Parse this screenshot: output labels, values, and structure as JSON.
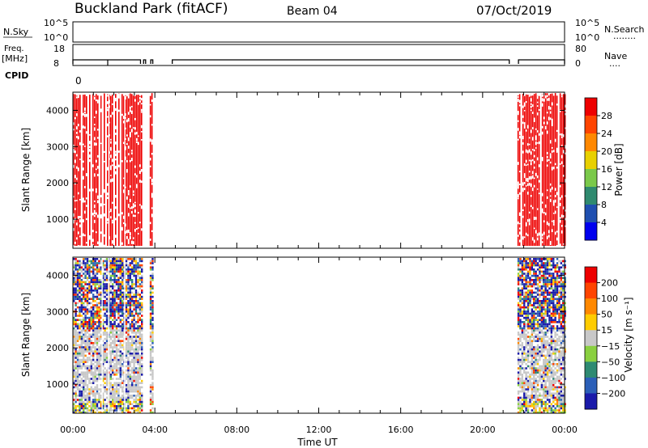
{
  "header": {
    "station": "Buckland Park (fitACF)",
    "beam": "Beam 04",
    "date": "07/Oct/2019"
  },
  "labels": {
    "nsky": "N.Sky",
    "freq_line1": "Freq.",
    "freq_line2": "[MHz]",
    "cpid": "CPID",
    "nsearch": "N.Search",
    "nave": "Nave",
    "dots_nsearch": "........",
    "dots_nave": "....",
    "cpid_value": "0"
  },
  "top_panels": {
    "noise_ticks": [
      "10^5",
      "10^0"
    ],
    "freq_ticks": [
      "18",
      "8"
    ],
    "nave_ticks": [
      "80",
      "0"
    ]
  },
  "chart_data": [
    {
      "type": "heatmap",
      "panel": "power",
      "ylabel": "Slant Range [km]",
      "xlabel": "",
      "x_ticks": [
        "00:00",
        "04:00",
        "08:00",
        "12:00",
        "16:00",
        "20:00",
        "00:00"
      ],
      "xlim_hours": [
        0,
        24
      ],
      "y_ticks": [
        1000,
        2000,
        3000,
        4000
      ],
      "ylim": [
        200,
        4500
      ],
      "colorbar": {
        "label": "Power [dB]",
        "ticks": [
          "4",
          "8",
          "12",
          "16",
          "20",
          "24",
          "28"
        ],
        "colors": [
          "#0000ee",
          "#1f4fb0",
          "#2f8a6f",
          "#7ac94a",
          "#e8d000",
          "#ff8800",
          "#ff4400",
          "#ee0000"
        ]
      },
      "data_blocks_hours": [
        [
          0.0,
          3.4
        ],
        [
          3.75,
          3.85
        ],
        [
          21.7,
          24.0
        ]
      ]
    },
    {
      "type": "heatmap",
      "panel": "velocity",
      "ylabel": "Slant Range [km]",
      "xlabel": "Time UT",
      "x_ticks": [
        "00:00",
        "04:00",
        "08:00",
        "12:00",
        "16:00",
        "20:00",
        "00:00"
      ],
      "xlim_hours": [
        0,
        24
      ],
      "y_ticks": [
        1000,
        2000,
        3000,
        4000
      ],
      "ylim": [
        200,
        4500
      ],
      "colorbar": {
        "label": "Velocity [m s⁻¹]",
        "ticks": [
          "200",
          "100",
          "50",
          "15",
          "−15",
          "−50",
          "−100",
          "−200"
        ],
        "colors": [
          "#1a1aaa",
          "#2b5fb8",
          "#2e8a72",
          "#8ad040",
          "#c8c8c8",
          "#ffcc00",
          "#ff8800",
          "#ff4400",
          "#ee0000"
        ]
      },
      "data_blocks_hours": [
        [
          0.0,
          3.4
        ],
        [
          3.75,
          3.85
        ],
        [
          21.7,
          24.0
        ]
      ]
    }
  ],
  "freq_trace": {
    "segments_hours": [
      [
        0.0,
        3.3
      ],
      [
        3.45,
        3.55
      ],
      [
        3.8,
        3.9
      ],
      [
        4.85,
        21.3
      ],
      [
        21.75,
        24.0
      ]
    ],
    "high_level": 10,
    "low_level": 8
  }
}
